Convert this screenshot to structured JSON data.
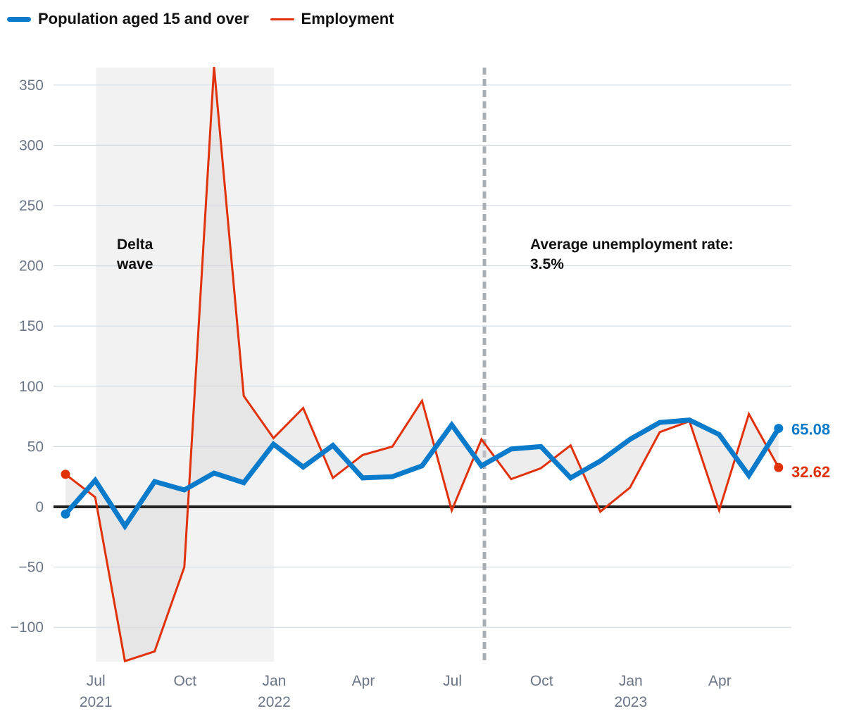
{
  "chart_data": {
    "type": "line",
    "title": "",
    "xlabel": "",
    "ylabel": "",
    "ylim": [
      -130,
      365
    ],
    "yticks": [
      350,
      300,
      250,
      200,
      150,
      100,
      50,
      0,
      -50,
      -100
    ],
    "ytick_labels": [
      "350",
      "300",
      "250",
      "200",
      "150",
      "100",
      "50",
      "0",
      "−50",
      "−100"
    ],
    "x_months": [
      "2021-06",
      "2021-07",
      "2021-08",
      "2021-09",
      "2021-10",
      "2021-11",
      "2021-12",
      "2022-01",
      "2022-02",
      "2022-03",
      "2022-04",
      "2022-05",
      "2022-06",
      "2022-07",
      "2022-08",
      "2022-09",
      "2022-10",
      "2022-11",
      "2022-12",
      "2023-01",
      "2023-02",
      "2023-03",
      "2023-04",
      "2023-05",
      "2023-06"
    ],
    "xticks": [
      {
        "index": 1,
        "label": "Jul",
        "year": "2021"
      },
      {
        "index": 4,
        "label": "Oct",
        "year": ""
      },
      {
        "index": 7,
        "label": "Jan",
        "year": "2022"
      },
      {
        "index": 10,
        "label": "Apr",
        "year": ""
      },
      {
        "index": 13,
        "label": "Jul",
        "year": ""
      },
      {
        "index": 16,
        "label": "Oct",
        "year": ""
      },
      {
        "index": 19,
        "label": "Jan",
        "year": "2023"
      },
      {
        "index": 22,
        "label": "Apr",
        "year": ""
      }
    ],
    "series": [
      {
        "name": "Population aged 15 and over",
        "color": "#0a7acb",
        "values": [
          -6,
          22,
          -16,
          21,
          14,
          28,
          20,
          52,
          33,
          51,
          24,
          25,
          34,
          68,
          34,
          48,
          50,
          24,
          38,
          56,
          70,
          72,
          60,
          26,
          65.08
        ],
        "end_label": "65.08"
      },
      {
        "name": "Employment",
        "color": "#e03109",
        "values": [
          27,
          8,
          -128,
          -120,
          -50,
          365,
          92,
          57,
          82,
          24,
          43,
          50,
          88,
          -3,
          56,
          23,
          32,
          51,
          -4,
          16,
          62,
          71,
          -3,
          77,
          32.62
        ],
        "end_label": "32.62"
      }
    ],
    "shaded_region": {
      "start_index": 1,
      "end_index": 7,
      "label_lines": [
        "Delta",
        "wave"
      ]
    },
    "reference_line": {
      "position_index": 14.1,
      "label_lines": [
        "Average unemployment rate:",
        "3.5%"
      ]
    },
    "grid": true,
    "legend_position": "top-left"
  }
}
